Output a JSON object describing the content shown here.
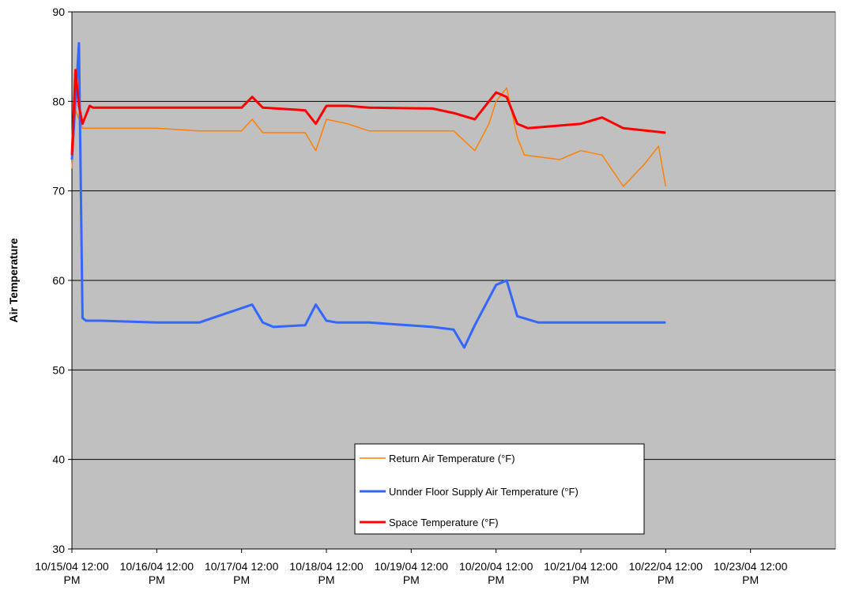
{
  "chart_data": {
    "type": "line",
    "title": "",
    "xlabel": "",
    "ylabel": "Air Temperature",
    "ylim": [
      30,
      90
    ],
    "yticks": [
      "30",
      "40",
      "50",
      "60",
      "70",
      "80",
      "90"
    ],
    "xlim": [
      "10/15/04 12:00 PM",
      "10/24/04 12:00 PM"
    ],
    "xticks": [
      [
        "10/15/04 12:00",
        "PM"
      ],
      [
        "10/16/04 12:00",
        "PM"
      ],
      [
        "10/17/04 12:00",
        "PM"
      ],
      [
        "10/18/04 12:00",
        "PM"
      ],
      [
        "10/19/04 12:00",
        "PM"
      ],
      [
        "10/20/04 12:00",
        "PM"
      ],
      [
        "10/21/04 12:00",
        "PM"
      ],
      [
        "10/22/04 12:00",
        "PM"
      ],
      [
        "10/23/04 12:00",
        "PM"
      ]
    ],
    "grid": "horizontal major gridlines",
    "plot_background": "#c0c0c0",
    "legend_position": "bottom-center inside plot",
    "series": [
      {
        "name": "Return Air Temperature (°F)",
        "color": "#ff7f00",
        "x": [
          "10/15/04 12:00 PM",
          "10/15/04 1:00 PM",
          "10/15/04 3:00 PM",
          "10/15/04 6:00 PM",
          "10/15/04 8:00 PM",
          "10/16/04 12:00 PM",
          "10/17/04 12:00 AM",
          "10/17/04 12:00 PM",
          "10/17/04 3:00 PM",
          "10/17/04 6:00 PM",
          "10/18/04 12:00 AM",
          "10/18/04 6:00 AM",
          "10/18/04 9:00 AM",
          "10/18/04 12:00 PM",
          "10/18/04 6:00 PM",
          "10/19/04 12:00 AM",
          "10/19/04 6:00 PM",
          "10/20/04 12:00 AM",
          "10/20/04 6:00 AM",
          "10/20/04 10:00 AM",
          "10/20/04 12:00 PM",
          "10/20/04 3:00 PM",
          "10/20/04 6:00 PM",
          "10/20/04 8:00 PM",
          "10/21/04 6:00 AM",
          "10/21/04 12:00 PM",
          "10/21/04 6:00 PM",
          "10/22/04 12:00 AM",
          "10/22/04 6:00 AM",
          "10/22/04 10:00 AM",
          "10/22/04 12:00 PM"
        ],
        "y": [
          72.5,
          79,
          77,
          77,
          77,
          77,
          76.7,
          76.7,
          78,
          76.5,
          76.5,
          76.5,
          74.5,
          78,
          77.5,
          76.7,
          76.7,
          76.7,
          74.5,
          77.5,
          80,
          81.5,
          76,
          74,
          73.5,
          74.5,
          74,
          70.5,
          73,
          75,
          70.5
        ]
      },
      {
        "name": "Unnder Floor Supply Air Temperature (°F)",
        "color": "#3366ff",
        "x": [
          "10/15/04 12:00 PM",
          "10/15/04 2:00 PM",
          "10/15/04 3:00 PM",
          "10/15/04 4:00 PM",
          "10/15/04 8:00 PM",
          "10/16/04 12:00 PM",
          "10/17/04 12:00 AM",
          "10/17/04 3:00 PM",
          "10/17/04 6:00 PM",
          "10/17/04 9:00 PM",
          "10/18/04 6:00 AM",
          "10/18/04 9:00 AM",
          "10/18/04 12:00 PM",
          "10/18/04 3:00 PM",
          "10/19/04 12:00 AM",
          "10/19/04 6:00 PM",
          "10/20/04 12:00 AM",
          "10/20/04 3:00 AM",
          "10/20/04 6:00 AM",
          "10/20/04 12:00 PM",
          "10/20/04 3:00 PM",
          "10/20/04 6:00 PM",
          "10/21/04 12:00 AM",
          "10/21/04 12:00 PM",
          "10/22/04 12:00 PM"
        ],
        "y": [
          73.5,
          86.5,
          55.8,
          55.5,
          55.5,
          55.3,
          55.3,
          57.3,
          55.3,
          54.8,
          55,
          57.3,
          55.5,
          55.3,
          55.3,
          54.8,
          54.5,
          52.5,
          55,
          59.5,
          60,
          56,
          55.3,
          55.3,
          55.3
        ]
      },
      {
        "name": "Space Temperature  (°F)",
        "color": "#ff0000",
        "x": [
          "10/15/04 12:00 PM",
          "10/15/04 1:00 PM",
          "10/15/04 2:00 PM",
          "10/15/04 3:00 PM",
          "10/15/04 5:00 PM",
          "10/15/04 6:00 PM",
          "10/16/04 12:00 PM",
          "10/17/04 12:00 AM",
          "10/17/04 12:00 PM",
          "10/17/04 3:00 PM",
          "10/17/04 6:00 PM",
          "10/18/04 6:00 AM",
          "10/18/04 9:00 AM",
          "10/18/04 12:00 PM",
          "10/18/04 6:00 PM",
          "10/19/04 12:00 AM",
          "10/19/04 6:00 PM",
          "10/20/04 12:00 AM",
          "10/20/04 6:00 AM",
          "10/20/04 10:00 AM",
          "10/20/04 12:00 PM",
          "10/20/04 3:00 PM",
          "10/20/04 6:00 PM",
          "10/20/04 9:00 PM",
          "10/21/04 12:00 PM",
          "10/21/04 6:00 PM",
          "10/22/04 12:00 AM",
          "10/22/04 12:00 PM"
        ],
        "y": [
          74,
          83.5,
          79.5,
          77.5,
          79.5,
          79.3,
          79.3,
          79.3,
          79.3,
          80.5,
          79.3,
          79,
          77.5,
          79.5,
          79.5,
          79.3,
          79.2,
          78.7,
          78,
          80,
          81,
          80.5,
          77.5,
          77,
          77.5,
          78.2,
          77,
          76.5
        ]
      }
    ]
  }
}
